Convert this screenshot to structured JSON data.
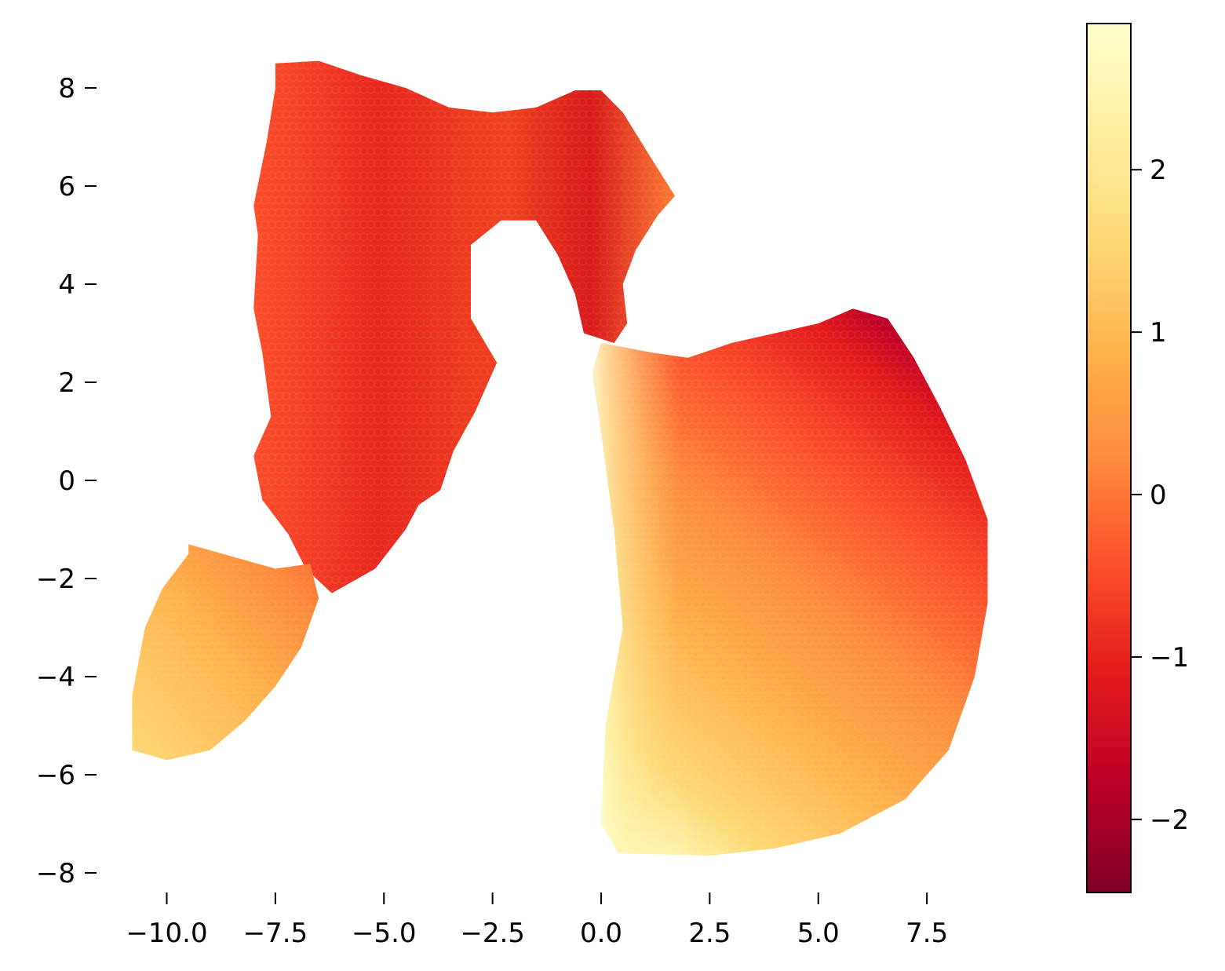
{
  "chart_data": {
    "type": "heatmap",
    "subtype": "hexbin",
    "title": "",
    "xlabel": "",
    "ylabel": "",
    "xlim": [
      -11.2,
      9.2
    ],
    "ylim": [
      -8.5,
      9.0
    ],
    "x_ticks": [
      -10.0,
      -7.5,
      -5.0,
      -2.5,
      0.0,
      2.5,
      5.0,
      7.5
    ],
    "x_tick_labels": [
      "−10.0",
      "−7.5",
      "−5.0",
      "−2.5",
      "0.0",
      "2.5",
      "5.0",
      "7.5"
    ],
    "y_ticks": [
      8,
      6,
      4,
      2,
      0,
      -2,
      -4,
      -6,
      -8
    ],
    "y_tick_labels": [
      "8",
      "6",
      "4",
      "2",
      "0",
      "−2",
      "−4",
      "−6",
      "−8"
    ],
    "frame": "none",
    "grid": false,
    "colormap": "YlOrRd_r",
    "colormap_stops": [
      "#800026",
      "#bd0026",
      "#e31a1c",
      "#fc4e2a",
      "#fd8d3c",
      "#feb24c",
      "#fed976",
      "#ffeda0",
      "#ffffcc"
    ],
    "colorbar": {
      "position": "right",
      "vmin": -2.45,
      "vmax": 2.9,
      "ticks": [
        2,
        1,
        0,
        -1,
        -2
      ],
      "tick_labels": [
        "2",
        "1",
        "0",
        "−1",
        "−2"
      ]
    },
    "regions": [
      {
        "name": "upper-left arm",
        "outline": [
          [
            -7.5,
            8.5
          ],
          [
            -6.5,
            8.55
          ],
          [
            -5.5,
            8.25
          ],
          [
            -4.5,
            8.0
          ],
          [
            -3.5,
            7.6
          ],
          [
            -2.5,
            7.5
          ],
          [
            -1.5,
            7.6
          ],
          [
            -0.6,
            7.95
          ],
          [
            0.0,
            7.95
          ],
          [
            0.5,
            7.5
          ],
          [
            1.2,
            6.5
          ],
          [
            1.7,
            5.8
          ],
          [
            1.3,
            5.4
          ],
          [
            0.8,
            4.7
          ],
          [
            0.5,
            4.0
          ],
          [
            0.6,
            3.2
          ],
          [
            0.3,
            2.8
          ],
          [
            -0.4,
            3.0
          ],
          [
            -0.6,
            3.8
          ],
          [
            -1.0,
            4.6
          ],
          [
            -1.5,
            5.3
          ],
          [
            -2.3,
            5.3
          ],
          [
            -3.0,
            4.8
          ],
          [
            -3.0,
            3.3
          ],
          [
            -2.4,
            2.4
          ],
          [
            -2.9,
            1.4
          ],
          [
            -3.4,
            0.6
          ],
          [
            -3.7,
            -0.2
          ],
          [
            -4.2,
            -0.5
          ],
          [
            -4.5,
            -1.0
          ],
          [
            -5.2,
            -1.8
          ],
          [
            -6.2,
            -2.3
          ],
          [
            -6.8,
            -1.8
          ],
          [
            -7.2,
            -1.1
          ],
          [
            -7.8,
            -0.4
          ],
          [
            -8.0,
            0.5
          ],
          [
            -7.6,
            1.3
          ],
          [
            -7.8,
            2.6
          ],
          [
            -8.0,
            3.5
          ],
          [
            -7.9,
            5.0
          ],
          [
            -8.0,
            5.6
          ],
          [
            -7.7,
            6.9
          ],
          [
            -7.5,
            8.0
          ]
        ],
        "value_range": [
          -1.4,
          0.6
        ]
      },
      {
        "name": "lower-left tail",
        "outline": [
          [
            -9.5,
            -1.3
          ],
          [
            -8.3,
            -1.6
          ],
          [
            -7.5,
            -1.8
          ],
          [
            -6.7,
            -1.7
          ],
          [
            -6.5,
            -2.4
          ],
          [
            -6.9,
            -3.4
          ],
          [
            -7.5,
            -4.2
          ],
          [
            -8.2,
            -4.9
          ],
          [
            -9.0,
            -5.5
          ],
          [
            -10.0,
            -5.7
          ],
          [
            -10.8,
            -5.5
          ],
          [
            -10.8,
            -4.4
          ],
          [
            -10.5,
            -3.0
          ],
          [
            -10.1,
            -2.2
          ],
          [
            -9.5,
            -1.5
          ]
        ],
        "value_range": [
          0.2,
          1.6
        ]
      },
      {
        "name": "right lobe",
        "outline": [
          [
            0.0,
            2.8
          ],
          [
            1.2,
            2.6
          ],
          [
            2.0,
            2.5
          ],
          [
            3.0,
            2.8
          ],
          [
            4.0,
            3.0
          ],
          [
            5.0,
            3.2
          ],
          [
            5.8,
            3.5
          ],
          [
            6.6,
            3.3
          ],
          [
            7.2,
            2.5
          ],
          [
            7.8,
            1.5
          ],
          [
            8.4,
            0.4
          ],
          [
            8.9,
            -0.8
          ],
          [
            8.9,
            -2.5
          ],
          [
            8.6,
            -4.0
          ],
          [
            8.0,
            -5.5
          ],
          [
            7.0,
            -6.5
          ],
          [
            5.5,
            -7.2
          ],
          [
            4.0,
            -7.5
          ],
          [
            2.5,
            -7.65
          ],
          [
            0.4,
            -7.6
          ],
          [
            0.0,
            -7.0
          ],
          [
            0.1,
            -5.0
          ],
          [
            0.5,
            -3.0
          ],
          [
            0.3,
            -1.0
          ],
          [
            0.0,
            1.0
          ],
          [
            -0.2,
            2.2
          ]
        ],
        "value_range": [
          -2.4,
          2.9
        ]
      }
    ]
  }
}
